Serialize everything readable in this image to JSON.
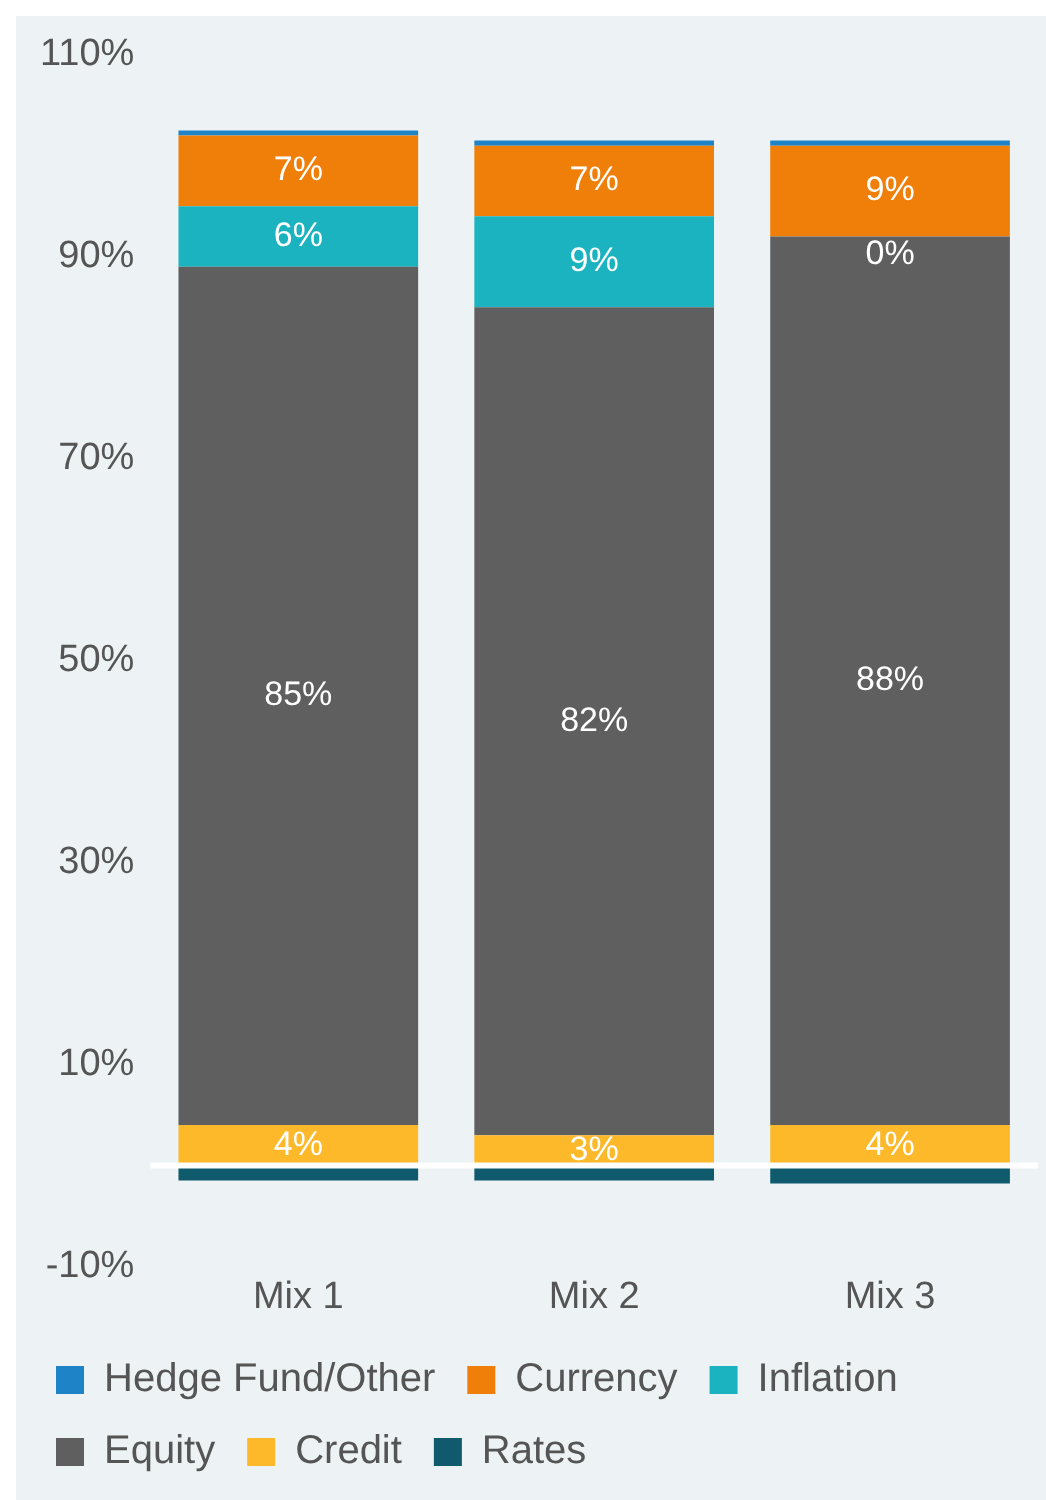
{
  "chart_data": {
    "type": "bar",
    "stacked": true,
    "categories": [
      "Mix 1",
      "Mix 2",
      "Mix 3"
    ],
    "series": [
      {
        "name": "Rates",
        "color": "#0f5a6c",
        "values": [
          -1.5,
          -1.5,
          -1.8
        ],
        "value_labels": [
          null,
          null,
          null
        ]
      },
      {
        "name": "Credit",
        "color": "#fdb92a",
        "values": [
          4,
          3,
          4
        ],
        "value_labels": [
          "4%",
          "3%",
          "4%"
        ]
      },
      {
        "name": "Equity",
        "color": "#5f5f5f",
        "values": [
          85,
          82,
          88
        ],
        "value_labels": [
          "85%",
          "82%",
          "88%"
        ]
      },
      {
        "name": "Inflation",
        "color": "#1ab3bf",
        "values": [
          6,
          9,
          0
        ],
        "value_labels": [
          "6%",
          "9%",
          "0%"
        ]
      },
      {
        "name": "Currency",
        "color": "#f07f09",
        "values": [
          7,
          7,
          9
        ],
        "value_labels": [
          "7%",
          "7%",
          "9%"
        ]
      },
      {
        "name": "Hedge Fund/Other",
        "color": "#1f83c8",
        "values": [
          0.5,
          0.5,
          0.5
        ],
        "value_labels": [
          null,
          null,
          null
        ]
      }
    ],
    "ylim": [
      -10,
      110
    ],
    "yticks": [
      {
        "value": -10,
        "label": "-10%"
      },
      {
        "value": 10,
        "label": "10%"
      },
      {
        "value": 30,
        "label": "30%"
      },
      {
        "value": 50,
        "label": "50%"
      },
      {
        "value": 70,
        "label": "70%"
      },
      {
        "value": 90,
        "label": "90%"
      },
      {
        "value": 110,
        "label": "110%"
      }
    ],
    "grid": false,
    "legend": "bottom"
  }
}
